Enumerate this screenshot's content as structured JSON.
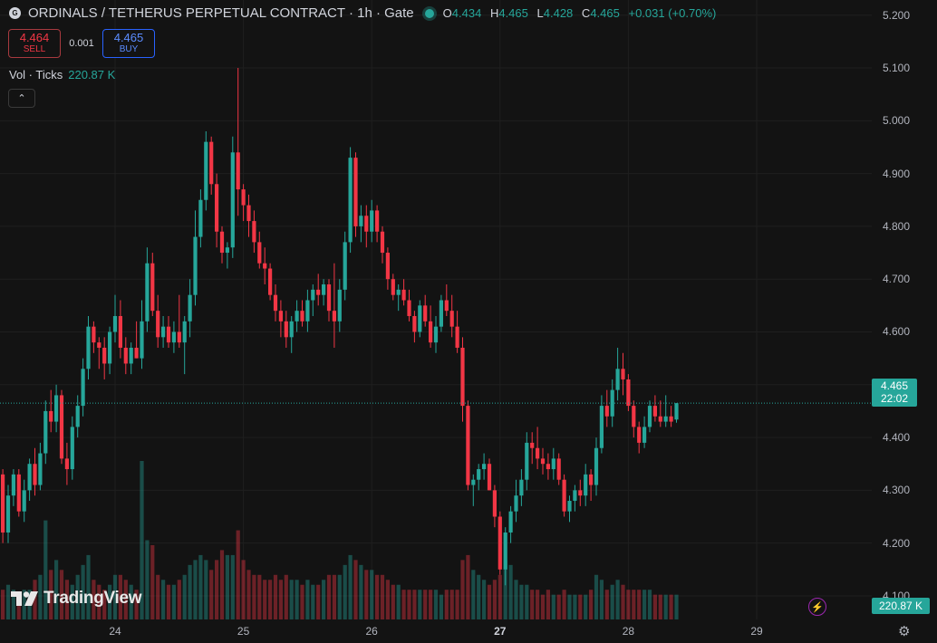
{
  "header": {
    "exchange_icon_text": "G",
    "title": "ORDINALS / TETHERUS PERPETUAL CONTRACT · 1h · Gate",
    "ohlc": {
      "o_label": "O",
      "o": "4.434",
      "h_label": "H",
      "h": "4.465",
      "l_label": "L",
      "l": "4.428",
      "c_label": "C",
      "c": "4.465",
      "change": "+0.031 (+0.70%)"
    }
  },
  "trade": {
    "sell_price": "4.464",
    "sell_label": "SELL",
    "spread": "0.001",
    "buy_price": "4.465",
    "buy_label": "BUY"
  },
  "volume_legend": {
    "label": "Vol · Ticks",
    "value": "220.87 K"
  },
  "collapse_icon": "chevron-up-icon",
  "price_tag": {
    "price": "4.465",
    "countdown": "22:02"
  },
  "volume_tag": "220.87 K",
  "logo": {
    "text": "TradingView"
  },
  "colors": {
    "up": "#26a69a",
    "down": "#f23645",
    "background": "#131313"
  },
  "chart_data": {
    "type": "candlestick",
    "interval": "1h",
    "y_ticks": [
      "5.200",
      "5.100",
      "5.000",
      "4.900",
      "4.800",
      "4.700",
      "4.600",
      "4.500",
      "4.400",
      "4.300",
      "4.200",
      "4.100"
    ],
    "ylim": [
      4.045,
      5.215
    ],
    "x_ticks": [
      {
        "label": "24",
        "hour": 24,
        "bold": false
      },
      {
        "label": "25",
        "hour": 48,
        "bold": false
      },
      {
        "label": "26",
        "hour": 72,
        "bold": false
      },
      {
        "label": "27",
        "hour": 96,
        "bold": true
      },
      {
        "label": "28",
        "hour": 120,
        "bold": false
      },
      {
        "label": "29",
        "hour": 144,
        "bold": false
      }
    ],
    "first_hour": 1,
    "last_price": 4.465,
    "grid": true,
    "candles": [
      [
        4.3,
        4.32,
        4.16,
        4.22,
        5
      ],
      [
        4.22,
        4.35,
        4.18,
        4.33,
        8
      ],
      [
        4.33,
        4.34,
        4.2,
        4.22,
        6
      ],
      [
        4.22,
        4.31,
        4.2,
        4.29,
        7
      ],
      [
        4.29,
        4.34,
        4.27,
        4.33,
        6
      ],
      [
        4.33,
        4.34,
        4.25,
        4.26,
        5
      ],
      [
        4.26,
        4.32,
        4.24,
        4.3,
        6
      ],
      [
        4.3,
        4.36,
        4.28,
        4.35,
        6
      ],
      [
        4.35,
        4.38,
        4.29,
        4.31,
        8
      ],
      [
        4.31,
        4.39,
        4.3,
        4.37,
        9
      ],
      [
        4.37,
        4.47,
        4.35,
        4.45,
        20
      ],
      [
        4.45,
        4.49,
        4.41,
        4.43,
        10
      ],
      [
        4.43,
        4.5,
        4.41,
        4.48,
        12
      ],
      [
        4.48,
        4.49,
        4.35,
        4.36,
        10
      ],
      [
        4.36,
        4.39,
        4.31,
        4.34,
        8
      ],
      [
        4.34,
        4.44,
        4.32,
        4.42,
        7
      ],
      [
        4.42,
        4.48,
        4.4,
        4.46,
        9
      ],
      [
        4.46,
        4.55,
        4.44,
        4.53,
        11
      ],
      [
        4.53,
        4.63,
        4.51,
        4.61,
        13
      ],
      [
        4.61,
        4.62,
        4.56,
        4.58,
        8
      ],
      [
        4.58,
        4.59,
        4.53,
        4.57,
        7
      ],
      [
        4.57,
        4.59,
        4.51,
        4.54,
        6
      ],
      [
        4.54,
        4.61,
        4.52,
        4.6,
        7
      ],
      [
        4.6,
        4.67,
        4.58,
        4.63,
        9
      ],
      [
        4.63,
        4.66,
        4.55,
        4.57,
        9
      ],
      [
        4.57,
        4.59,
        4.52,
        4.54,
        8
      ],
      [
        4.54,
        4.58,
        4.52,
        4.57,
        7
      ],
      [
        4.57,
        4.62,
        4.55,
        4.55,
        6
      ],
      [
        4.55,
        4.66,
        4.53,
        4.62,
        32
      ],
      [
        4.62,
        4.76,
        4.6,
        4.73,
        16
      ],
      [
        4.73,
        4.75,
        4.63,
        4.64,
        15
      ],
      [
        4.64,
        4.67,
        4.57,
        4.59,
        9
      ],
      [
        4.59,
        4.63,
        4.57,
        4.61,
        8
      ],
      [
        4.61,
        4.63,
        4.57,
        4.58,
        7
      ],
      [
        4.58,
        4.62,
        4.56,
        4.6,
        7
      ],
      [
        4.6,
        4.67,
        4.57,
        4.58,
        8
      ],
      [
        4.58,
        4.63,
        4.52,
        4.62,
        9
      ],
      [
        4.62,
        4.7,
        4.59,
        4.67,
        11
      ],
      [
        4.67,
        4.83,
        4.65,
        4.78,
        12
      ],
      [
        4.78,
        4.87,
        4.76,
        4.85,
        13
      ],
      [
        4.85,
        4.98,
        4.83,
        4.96,
        12
      ],
      [
        4.96,
        4.97,
        4.86,
        4.88,
        10
      ],
      [
        4.88,
        4.9,
        4.76,
        4.79,
        12
      ],
      [
        4.79,
        4.8,
        4.73,
        4.75,
        14
      ],
      [
        4.75,
        4.77,
        4.72,
        4.76,
        13
      ],
      [
        4.76,
        4.97,
        4.74,
        4.94,
        13
      ],
      [
        4.94,
        5.1,
        4.82,
        4.87,
        18
      ],
      [
        4.87,
        4.88,
        4.81,
        4.84,
        12
      ],
      [
        4.84,
        4.86,
        4.78,
        4.81,
        10
      ],
      [
        4.81,
        4.83,
        4.75,
        4.77,
        9
      ],
      [
        4.77,
        4.79,
        4.72,
        4.73,
        9
      ],
      [
        4.73,
        4.76,
        4.69,
        4.72,
        8
      ],
      [
        4.72,
        4.73,
        4.66,
        4.67,
        8
      ],
      [
        4.67,
        4.69,
        4.62,
        4.64,
        9
      ],
      [
        4.64,
        4.66,
        4.59,
        4.62,
        8
      ],
      [
        4.62,
        4.64,
        4.57,
        4.59,
        9
      ],
      [
        4.59,
        4.63,
        4.56,
        4.62,
        8
      ],
      [
        4.62,
        4.66,
        4.6,
        4.64,
        8
      ],
      [
        4.64,
        4.66,
        4.61,
        4.62,
        7
      ],
      [
        4.62,
        4.68,
        4.6,
        4.66,
        8
      ],
      [
        4.66,
        4.69,
        4.63,
        4.68,
        7
      ],
      [
        4.68,
        4.71,
        4.65,
        4.67,
        7
      ],
      [
        4.67,
        4.7,
        4.65,
        4.69,
        8
      ],
      [
        4.69,
        4.7,
        4.62,
        4.64,
        9
      ],
      [
        4.64,
        4.73,
        4.57,
        4.62,
        9
      ],
      [
        4.62,
        4.7,
        4.6,
        4.68,
        9
      ],
      [
        4.68,
        4.79,
        4.66,
        4.77,
        11
      ],
      [
        4.77,
        4.95,
        4.75,
        4.93,
        13
      ],
      [
        4.93,
        4.94,
        4.78,
        4.8,
        12
      ],
      [
        4.8,
        4.84,
        4.77,
        4.82,
        11
      ],
      [
        4.82,
        4.84,
        4.76,
        4.79,
        10
      ],
      [
        4.79,
        4.85,
        4.77,
        4.83,
        10
      ],
      [
        4.83,
        4.84,
        4.77,
        4.79,
        9
      ],
      [
        4.79,
        4.8,
        4.73,
        4.75,
        9
      ],
      [
        4.75,
        4.76,
        4.68,
        4.7,
        8
      ],
      [
        4.7,
        4.71,
        4.66,
        4.67,
        7
      ],
      [
        4.67,
        4.69,
        4.64,
        4.68,
        7
      ],
      [
        4.68,
        4.7,
        4.65,
        4.66,
        6
      ],
      [
        4.66,
        4.68,
        4.62,
        4.63,
        6
      ],
      [
        4.63,
        4.64,
        4.58,
        4.6,
        6
      ],
      [
        4.6,
        4.66,
        4.59,
        4.65,
        6
      ],
      [
        4.65,
        4.67,
        4.61,
        4.62,
        6
      ],
      [
        4.62,
        4.65,
        4.57,
        4.58,
        6
      ],
      [
        4.58,
        4.63,
        4.56,
        4.61,
        6
      ],
      [
        4.61,
        4.67,
        4.6,
        4.66,
        5
      ],
      [
        4.66,
        4.69,
        4.63,
        4.64,
        6
      ],
      [
        4.64,
        4.67,
        4.59,
        4.61,
        6
      ],
      [
        4.61,
        4.64,
        4.56,
        4.57,
        6
      ],
      [
        4.57,
        4.59,
        4.43,
        4.46,
        12
      ],
      [
        4.46,
        4.47,
        4.3,
        4.31,
        13
      ],
      [
        4.31,
        4.33,
        4.27,
        4.32,
        10
      ],
      [
        4.32,
        4.35,
        4.3,
        4.34,
        9
      ],
      [
        4.34,
        4.37,
        4.32,
        4.35,
        8
      ],
      [
        4.35,
        4.36,
        4.3,
        4.3,
        7
      ],
      [
        4.3,
        4.31,
        4.23,
        4.25,
        8
      ],
      [
        4.25,
        4.26,
        4.14,
        4.15,
        9
      ],
      [
        4.15,
        4.23,
        4.12,
        4.22,
        12
      ],
      [
        4.22,
        4.27,
        4.2,
        4.26,
        11
      ],
      [
        4.26,
        4.32,
        4.24,
        4.29,
        8
      ],
      [
        4.29,
        4.34,
        4.27,
        4.32,
        7
      ],
      [
        4.32,
        4.41,
        4.3,
        4.39,
        7
      ],
      [
        4.39,
        4.41,
        4.35,
        4.38,
        6
      ],
      [
        4.38,
        4.42,
        4.34,
        4.36,
        6
      ],
      [
        4.36,
        4.38,
        4.33,
        4.35,
        5
      ],
      [
        4.35,
        4.37,
        4.32,
        4.34,
        6
      ],
      [
        4.34,
        4.38,
        4.32,
        4.36,
        5
      ],
      [
        4.36,
        4.37,
        4.31,
        4.32,
        5
      ],
      [
        4.32,
        4.33,
        4.25,
        4.26,
        6
      ],
      [
        4.26,
        4.29,
        4.24,
        4.28,
        5
      ],
      [
        4.28,
        4.31,
        4.26,
        4.3,
        5
      ],
      [
        4.3,
        4.32,
        4.27,
        4.29,
        5
      ],
      [
        4.29,
        4.35,
        4.27,
        4.33,
        5
      ],
      [
        4.33,
        4.34,
        4.28,
        4.31,
        6
      ],
      [
        4.31,
        4.4,
        4.29,
        4.38,
        9
      ],
      [
        4.38,
        4.48,
        4.37,
        4.46,
        8
      ],
      [
        4.46,
        4.49,
        4.42,
        4.44,
        6
      ],
      [
        4.44,
        4.51,
        4.42,
        4.49,
        7
      ],
      [
        4.49,
        4.57,
        4.47,
        4.53,
        8
      ],
      [
        4.53,
        4.56,
        4.48,
        4.51,
        7
      ],
      [
        4.51,
        4.52,
        4.45,
        4.46,
        6
      ],
      [
        4.46,
        4.47,
        4.4,
        4.42,
        6
      ],
      [
        4.42,
        4.43,
        4.37,
        4.39,
        6
      ],
      [
        4.39,
        4.44,
        4.38,
        4.42,
        6
      ],
      [
        4.42,
        4.47,
        4.41,
        4.46,
        6
      ],
      [
        4.46,
        4.48,
        4.43,
        4.44,
        5
      ],
      [
        4.44,
        4.47,
        4.42,
        4.43,
        5
      ],
      [
        4.43,
        4.48,
        4.42,
        4.44,
        5
      ],
      [
        4.44,
        4.46,
        4.42,
        4.43,
        5
      ],
      [
        4.434,
        4.465,
        4.428,
        4.465,
        5
      ]
    ]
  }
}
